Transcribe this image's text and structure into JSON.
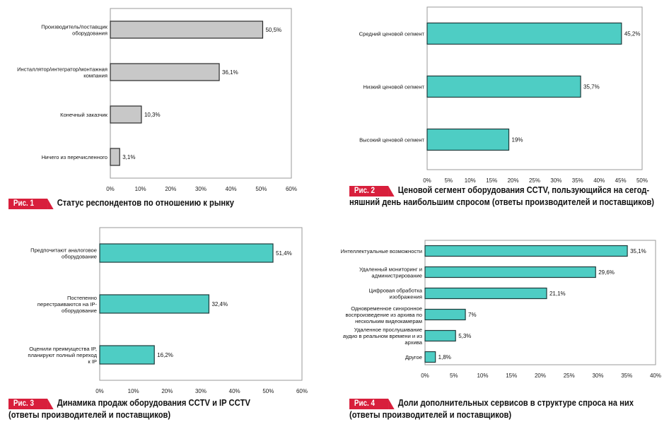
{
  "figures": [
    {
      "id": "c1",
      "badge": "Рис. 1",
      "caption": "Статус респондентов по отношению к рынку",
      "colors": {
        "bar": "#c8c8c8",
        "stroke": "#2a2a2a"
      }
    },
    {
      "id": "c2",
      "badge": "Рис. 2",
      "caption": "Ценовой сегмент оборудования CCTV, пользующийся на сегод-",
      "caption2": "няшний день наибольшим спросом (ответы производителей и поставщиков)",
      "colors": {
        "bar": "#4ecdc4",
        "stroke": "#1e3b3b"
      }
    },
    {
      "id": "c3",
      "badge": "Рис. 3",
      "caption": "Динамика продаж оборудования CCTV и IP CCTV",
      "caption2": "(ответы производителей и поставщиков)",
      "colors": {
        "bar": "#4ecdc4",
        "stroke": "#1e3b3b"
      }
    },
    {
      "id": "c4",
      "badge": "Рис. 4",
      "caption": "Доли дополнительных сервисов в структуре спроса на них",
      "caption2": "(ответы производителей и поставщиков)",
      "colors": {
        "bar": "#4ecdc4",
        "stroke": "#1e3b3b"
      }
    }
  ],
  "chart_data": [
    {
      "type": "bar",
      "orientation": "horizontal",
      "categories": [
        [
          "Производитель/поставщик",
          "оборудования"
        ],
        [
          "Инсталлятор/интегратор/монтажная",
          "компания"
        ],
        [
          "Конечный заказчик"
        ],
        [
          "Ничего из перечисленного"
        ]
      ],
      "values": [
        50.5,
        36.1,
        10.3,
        3.1
      ],
      "value_labels": [
        "50,5%",
        "36,1%",
        "10,3%",
        "3,1%"
      ],
      "ticks": [
        "0%",
        "10%",
        "20%",
        "30%",
        "40%",
        "50%",
        "60%"
      ],
      "xlim": [
        0,
        60
      ]
    },
    {
      "type": "bar",
      "orientation": "horizontal",
      "categories": [
        [
          "Средний ценовой сегмент"
        ],
        [
          "Низкий ценовой сегмент"
        ],
        [
          "Высокий ценовой сегмент"
        ]
      ],
      "values": [
        45.2,
        35.7,
        19
      ],
      "value_labels": [
        "45,2%",
        "35,7%",
        "19%"
      ],
      "ticks": [
        "0%",
        "5%",
        "10%",
        "15%",
        "20%",
        "25%",
        "30%",
        "35%",
        "40%",
        "45%",
        "50%"
      ],
      "xlim": [
        0,
        50
      ]
    },
    {
      "type": "bar",
      "orientation": "horizontal",
      "categories": [
        [
          "Предпочитают аналоговое",
          "оборудование"
        ],
        [
          "Постепенно",
          "перестраиваются на IP-",
          "оборудование"
        ],
        [
          "Оценили преимущества IP,",
          "планируют полный переход",
          "к IP"
        ]
      ],
      "values": [
        51.4,
        32.4,
        16.2
      ],
      "value_labels": [
        "51,4%",
        "32,4%",
        "16,2%"
      ],
      "ticks": [
        "0%",
        "10%",
        "20%",
        "30%",
        "40%",
        "50%",
        "60%"
      ],
      "xlim": [
        0,
        60
      ]
    },
    {
      "type": "bar",
      "orientation": "horizontal",
      "categories": [
        [
          "Интеллектуальные возможности"
        ],
        [
          "Удаленный мониторинг и",
          "администрирование"
        ],
        [
          "Цифровая обработка",
          "изображения"
        ],
        [
          "Одновременное синхронное",
          "воспроизведение из архива по",
          "нескольким видеокамерам"
        ],
        [
          "Удаленное прослушивание",
          "аудио в реальном времени и из",
          "архива"
        ],
        [
          "Другое"
        ]
      ],
      "values": [
        35.1,
        29.6,
        21.1,
        7,
        5.3,
        1.8
      ],
      "value_labels": [
        "35,1%",
        "29,6%",
        "21,1%",
        "7%",
        "5,3%",
        "1,8%"
      ],
      "ticks": [
        "0%",
        "5%",
        "10%",
        "15%",
        "20%",
        "25%",
        "30%",
        "35%",
        "40%"
      ],
      "xlim": [
        0,
        40
      ]
    }
  ]
}
